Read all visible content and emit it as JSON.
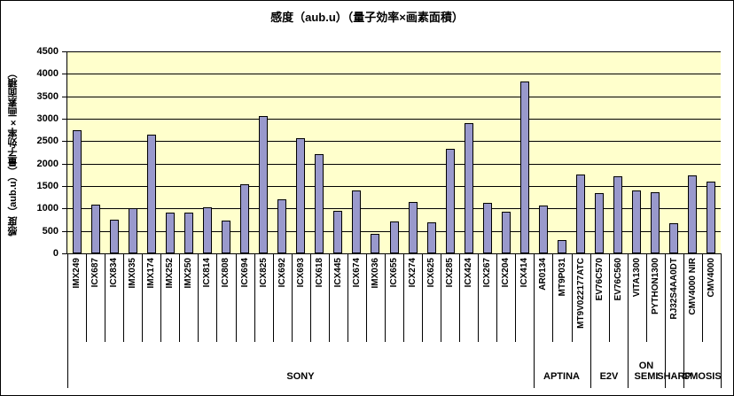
{
  "chart_data": {
    "type": "bar",
    "title": "感度（aub.u）（量子効率×画素面積）",
    "ylabel": "感度（aub.u）（量子効率×画素面積）",
    "ylim": [
      0,
      4500
    ],
    "yticks": [
      0,
      500,
      1000,
      1500,
      2000,
      2500,
      3000,
      3500,
      4000,
      4500
    ],
    "grid": true,
    "legend": false,
    "plot_bg": "#FFFFCC",
    "bar_color": "#9999CC",
    "bar_border": "#000000",
    "categories": [
      "IMX249",
      "ICX687",
      "ICX834",
      "IMX035",
      "IMX174",
      "IMX252",
      "IMX250",
      "ICX814",
      "ICX808",
      "ICX694",
      "ICX825",
      "ICX692",
      "ICX693",
      "ICX618",
      "ICX445",
      "ICX674",
      "IMX036",
      "ICX655",
      "ICX274",
      "ICX625",
      "ICX285",
      "ICX424",
      "ICX267",
      "ICX204",
      "ICX414",
      "AR0134",
      "MT9P031",
      "MT9V022177ATC",
      "EV76C570",
      "EV76C560",
      "VITA1300",
      "PYTHON1300",
      "RJ32S4AA0DT",
      "CMV4000 NIR",
      "CMV4000"
    ],
    "values": [
      2750,
      1080,
      750,
      1000,
      2650,
      900,
      900,
      1030,
      730,
      1530,
      3050,
      1200,
      2570,
      2210,
      950,
      1400,
      430,
      710,
      1140,
      690,
      2330,
      2900,
      1130,
      930,
      3830,
      1070,
      300,
      1760,
      1340,
      1720,
      1400,
      1360,
      670,
      1740,
      1600
    ],
    "groups": [
      {
        "label": "SONY",
        "span": 25
      },
      {
        "label": "APTINA",
        "span": 3
      },
      {
        "label": "E2V",
        "span": 2
      },
      {
        "label": "ON\nSEMI",
        "span": 2
      },
      {
        "label": "SHARP",
        "span": 1
      },
      {
        "label": "CMOSIS",
        "span": 2
      }
    ]
  }
}
